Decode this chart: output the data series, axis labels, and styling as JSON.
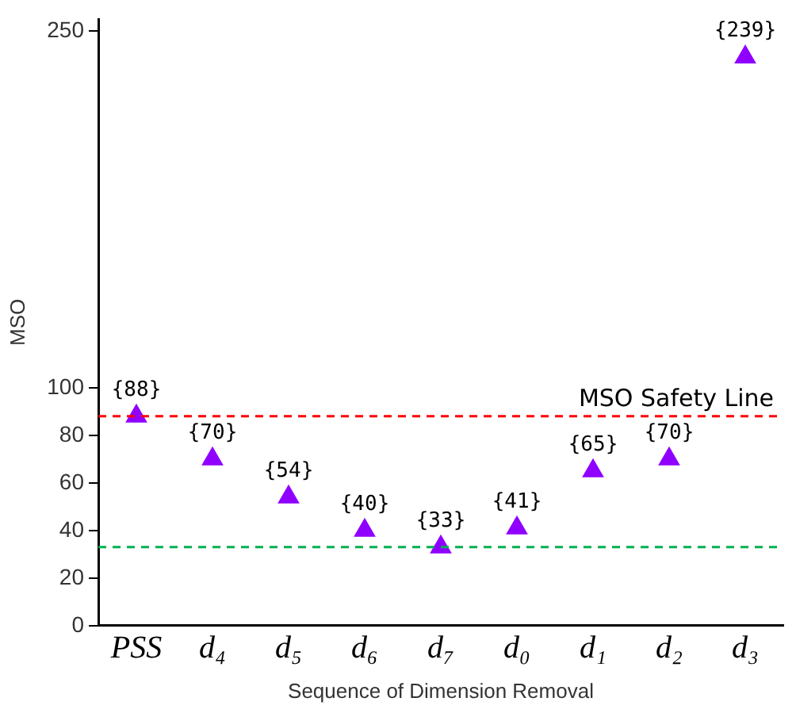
{
  "chart_data": {
    "type": "scatter",
    "xlabel": "Sequence of Dimension Removal",
    "ylabel": "MSO",
    "categories": [
      "PSS",
      "d₄",
      "d₅",
      "d₆",
      "d₇",
      "d₀",
      "d₁",
      "d₂",
      "d₃"
    ],
    "series": [
      {
        "color": "#8f00ff",
        "values": [
          88,
          70,
          54,
          40,
          33,
          41,
          65,
          70,
          239
        ],
        "value_labels": [
          "{88}",
          "{70}",
          "{54}",
          "{40}",
          "{33}",
          "{41}",
          "{65}",
          "{70}",
          "{239}"
        ]
      }
    ],
    "ylim": [
      0,
      255
    ],
    "yticks": [
      0,
      20,
      40,
      60,
      80,
      100,
      250
    ],
    "ref_lines": [
      {
        "axis": "y",
        "value": 88,
        "label": "MSO Safety Line",
        "color": "#ff0000",
        "line_style": "dashed"
      },
      {
        "axis": "y",
        "value": 33,
        "color": "#00b050",
        "line_style": "dashed"
      }
    ],
    "marker": "triangle",
    "grid": false,
    "legend": false
  }
}
